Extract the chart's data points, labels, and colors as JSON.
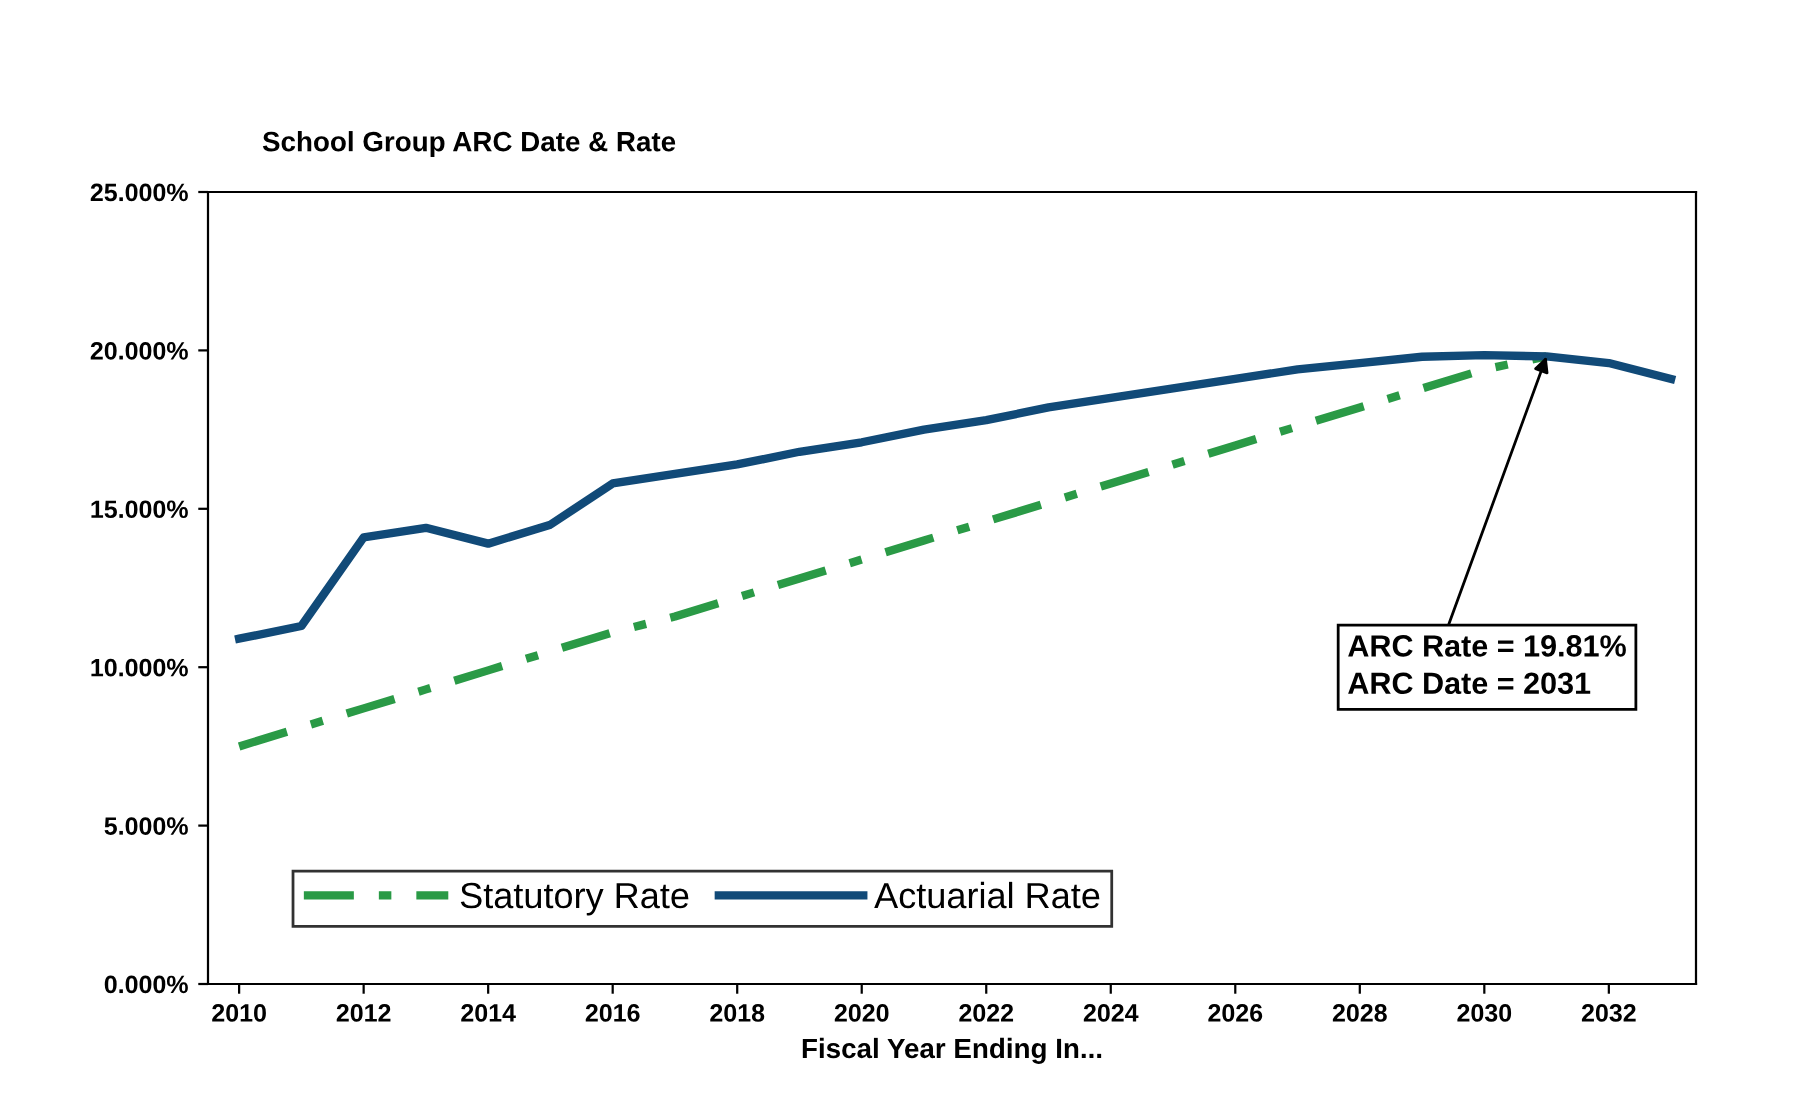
{
  "chart_data": {
    "type": "line",
    "title": "School Group ARC Date & Rate",
    "xlabel": "Fiscal Year Ending In...",
    "x": [
      2010,
      2011,
      2012,
      2013,
      2014,
      2015,
      2016,
      2017,
      2018,
      2019,
      2020,
      2021,
      2022,
      2023,
      2024,
      2025,
      2026,
      2027,
      2028,
      2029,
      2030,
      2031,
      2032,
      2033
    ],
    "series": [
      {
        "name": "Statutory Rate",
        "color": "#2a9a46",
        "line_style": "dashdot",
        "values": [
          7.5,
          8.1,
          8.7,
          9.3,
          9.9,
          10.5,
          11.1,
          11.6,
          12.2,
          12.8,
          13.4,
          14.0,
          14.6,
          15.2,
          15.8,
          16.4,
          17.0,
          17.6,
          18.2,
          18.8,
          19.4,
          19.81,
          null,
          null
        ]
      },
      {
        "name": "Actuarial Rate",
        "color": "#114a78",
        "line_style": "solid",
        "values": [
          10.9,
          11.3,
          14.1,
          14.4,
          13.9,
          14.5,
          15.8,
          16.1,
          16.4,
          16.8,
          17.1,
          17.5,
          17.8,
          18.2,
          18.5,
          18.8,
          19.1,
          19.4,
          19.6,
          19.8,
          19.85,
          19.81,
          19.6,
          19.1
        ]
      }
    ],
    "xlim": [
      2009.5,
      2033.4
    ],
    "xticks": [
      2010,
      2012,
      2014,
      2016,
      2018,
      2020,
      2022,
      2024,
      2026,
      2028,
      2030,
      2032
    ],
    "ylim": [
      0,
      25
    ],
    "yticks": [
      {
        "value": 0,
        "label": "0.000%"
      },
      {
        "value": 5,
        "label": "5.000%"
      },
      {
        "value": 10,
        "label": "10.000%"
      },
      {
        "value": 15,
        "label": "15.000%"
      },
      {
        "value": 20,
        "label": "20.000%"
      },
      {
        "value": 25,
        "label": "25.000%"
      }
    ],
    "annotations": [
      {
        "text": "ARC Rate = 19.81%\nARC Date = 2031",
        "x": 2031,
        "y": 19.81
      }
    ],
    "grid": false,
    "legend": "bottom left",
    "marker": "none"
  }
}
